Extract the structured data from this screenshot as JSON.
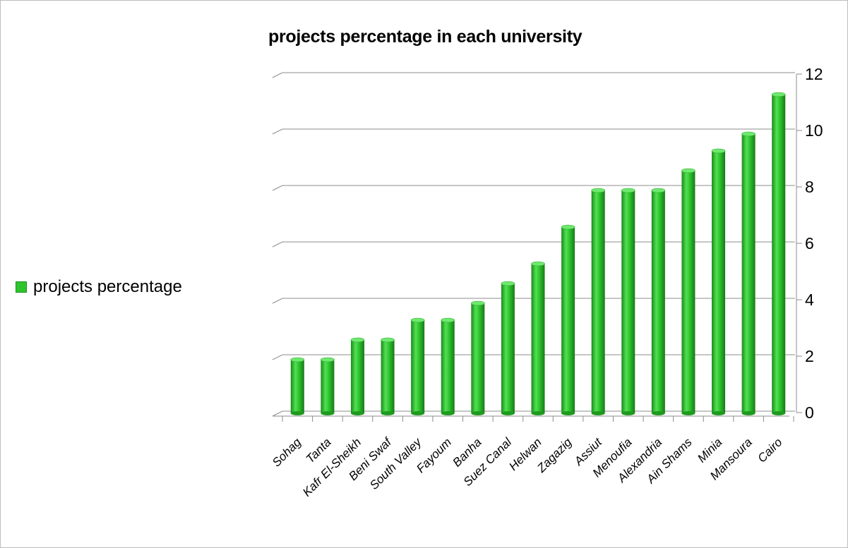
{
  "chart_data": {
    "type": "bar",
    "title": "projects percentage in each university",
    "xlabel": "",
    "ylabel": "",
    "ylim": [
      0,
      12
    ],
    "y_ticks": [
      0,
      2,
      4,
      6,
      8,
      10,
      12
    ],
    "y_axis_side": "right",
    "legend_position": "left",
    "grid": true,
    "bar_color": "#2ec42e",
    "categories": [
      "Sohag",
      "Tanta",
      "Kafr El-Sheikh",
      "Beni Swaf",
      "South Valley",
      "Fayoum",
      "Banha",
      "Suez Canal",
      "Helwan",
      "Zagazig",
      "Assiut",
      "Menoufia",
      "Alexandria",
      "Ain Shams",
      "Minia",
      "Mansoura",
      "Cairo"
    ],
    "series": [
      {
        "name": "projects percentage",
        "values": [
          2.0,
          2.0,
          2.7,
          2.7,
          3.4,
          3.4,
          4.0,
          4.7,
          5.4,
          6.7,
          8.0,
          8.0,
          8.0,
          8.7,
          9.4,
          10.0,
          11.4
        ]
      }
    ]
  }
}
